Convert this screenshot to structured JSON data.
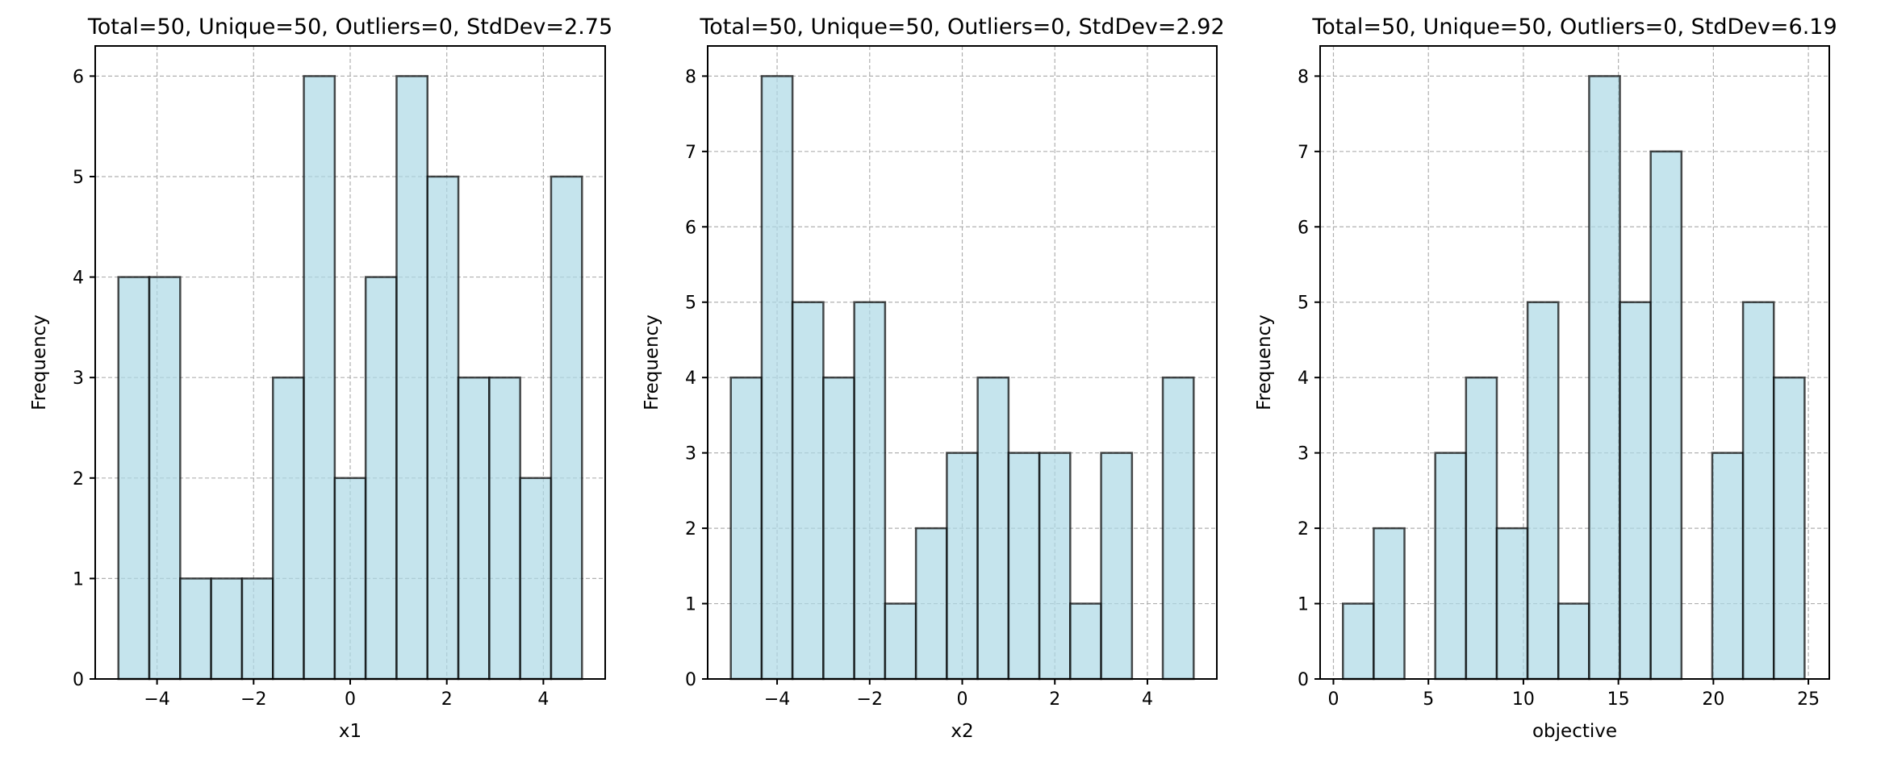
{
  "chart_data": [
    {
      "type": "bar",
      "title": "Total=50, Unique=50, Outliers=0, StdDev=2.75",
      "xlabel": "x1",
      "ylabel": "Frequency",
      "xlim": [
        -5.28,
        5.28
      ],
      "ylim": [
        0,
        6.3
      ],
      "xticks": [
        -4,
        -2,
        0,
        2,
        4
      ],
      "xtick_labels": [
        "−4",
        "−2",
        "0",
        "2",
        "4"
      ],
      "yticks": [
        0,
        1,
        2,
        3,
        4,
        5,
        6
      ],
      "grid": true,
      "bin_edges": [
        -4.8,
        -4.16,
        -3.52,
        -2.88,
        -2.24,
        -1.6,
        -0.96,
        -0.32,
        0.32,
        0.96,
        1.6,
        2.24,
        2.88,
        3.52,
        4.16,
        4.8
      ],
      "values": [
        4,
        4,
        1,
        1,
        1,
        3,
        6,
        2,
        4,
        6,
        5,
        3,
        3,
        2,
        5
      ]
    },
    {
      "type": "bar",
      "title": "Total=50, Unique=50, Outliers=0, StdDev=2.92",
      "xlabel": "x2",
      "ylabel": "Frequency",
      "xlim": [
        -5.5,
        5.5
      ],
      "ylim": [
        0,
        8.4
      ],
      "xticks": [
        -4,
        -2,
        0,
        2,
        4
      ],
      "xtick_labels": [
        "−4",
        "−2",
        "0",
        "2",
        "4"
      ],
      "yticks": [
        0,
        1,
        2,
        3,
        4,
        5,
        6,
        7,
        8
      ],
      "grid": true,
      "bin_edges": [
        -5.0,
        -4.333,
        -3.667,
        -3.0,
        -2.333,
        -1.667,
        -1.0,
        -0.333,
        0.333,
        1.0,
        1.667,
        2.333,
        3.0,
        3.667,
        4.333,
        5.0
      ],
      "values": [
        4,
        8,
        5,
        4,
        5,
        1,
        2,
        3,
        4,
        3,
        3,
        1,
        3,
        0,
        4
      ]
    },
    {
      "type": "bar",
      "title": "Total=50, Unique=50, Outliers=0, StdDev=6.19",
      "xlabel": "objective",
      "ylabel": "Frequency",
      "xlim": [
        -0.7,
        26.1
      ],
      "ylim": [
        0,
        8.4
      ],
      "xticks": [
        0,
        5,
        10,
        15,
        20,
        25
      ],
      "xtick_labels": [
        "0",
        "5",
        "10",
        "15",
        "20",
        "25"
      ],
      "yticks": [
        0,
        1,
        2,
        3,
        4,
        5,
        6,
        7,
        8
      ],
      "grid": true,
      "bin_edges": [
        0.5,
        2.12,
        3.74,
        5.36,
        6.98,
        8.6,
        10.22,
        11.84,
        13.46,
        15.08,
        16.7,
        18.32,
        19.94,
        21.56,
        23.18,
        24.8
      ],
      "values": [
        1,
        2,
        0,
        3,
        4,
        2,
        5,
        1,
        8,
        5,
        7,
        0,
        3,
        5,
        4
      ]
    }
  ]
}
